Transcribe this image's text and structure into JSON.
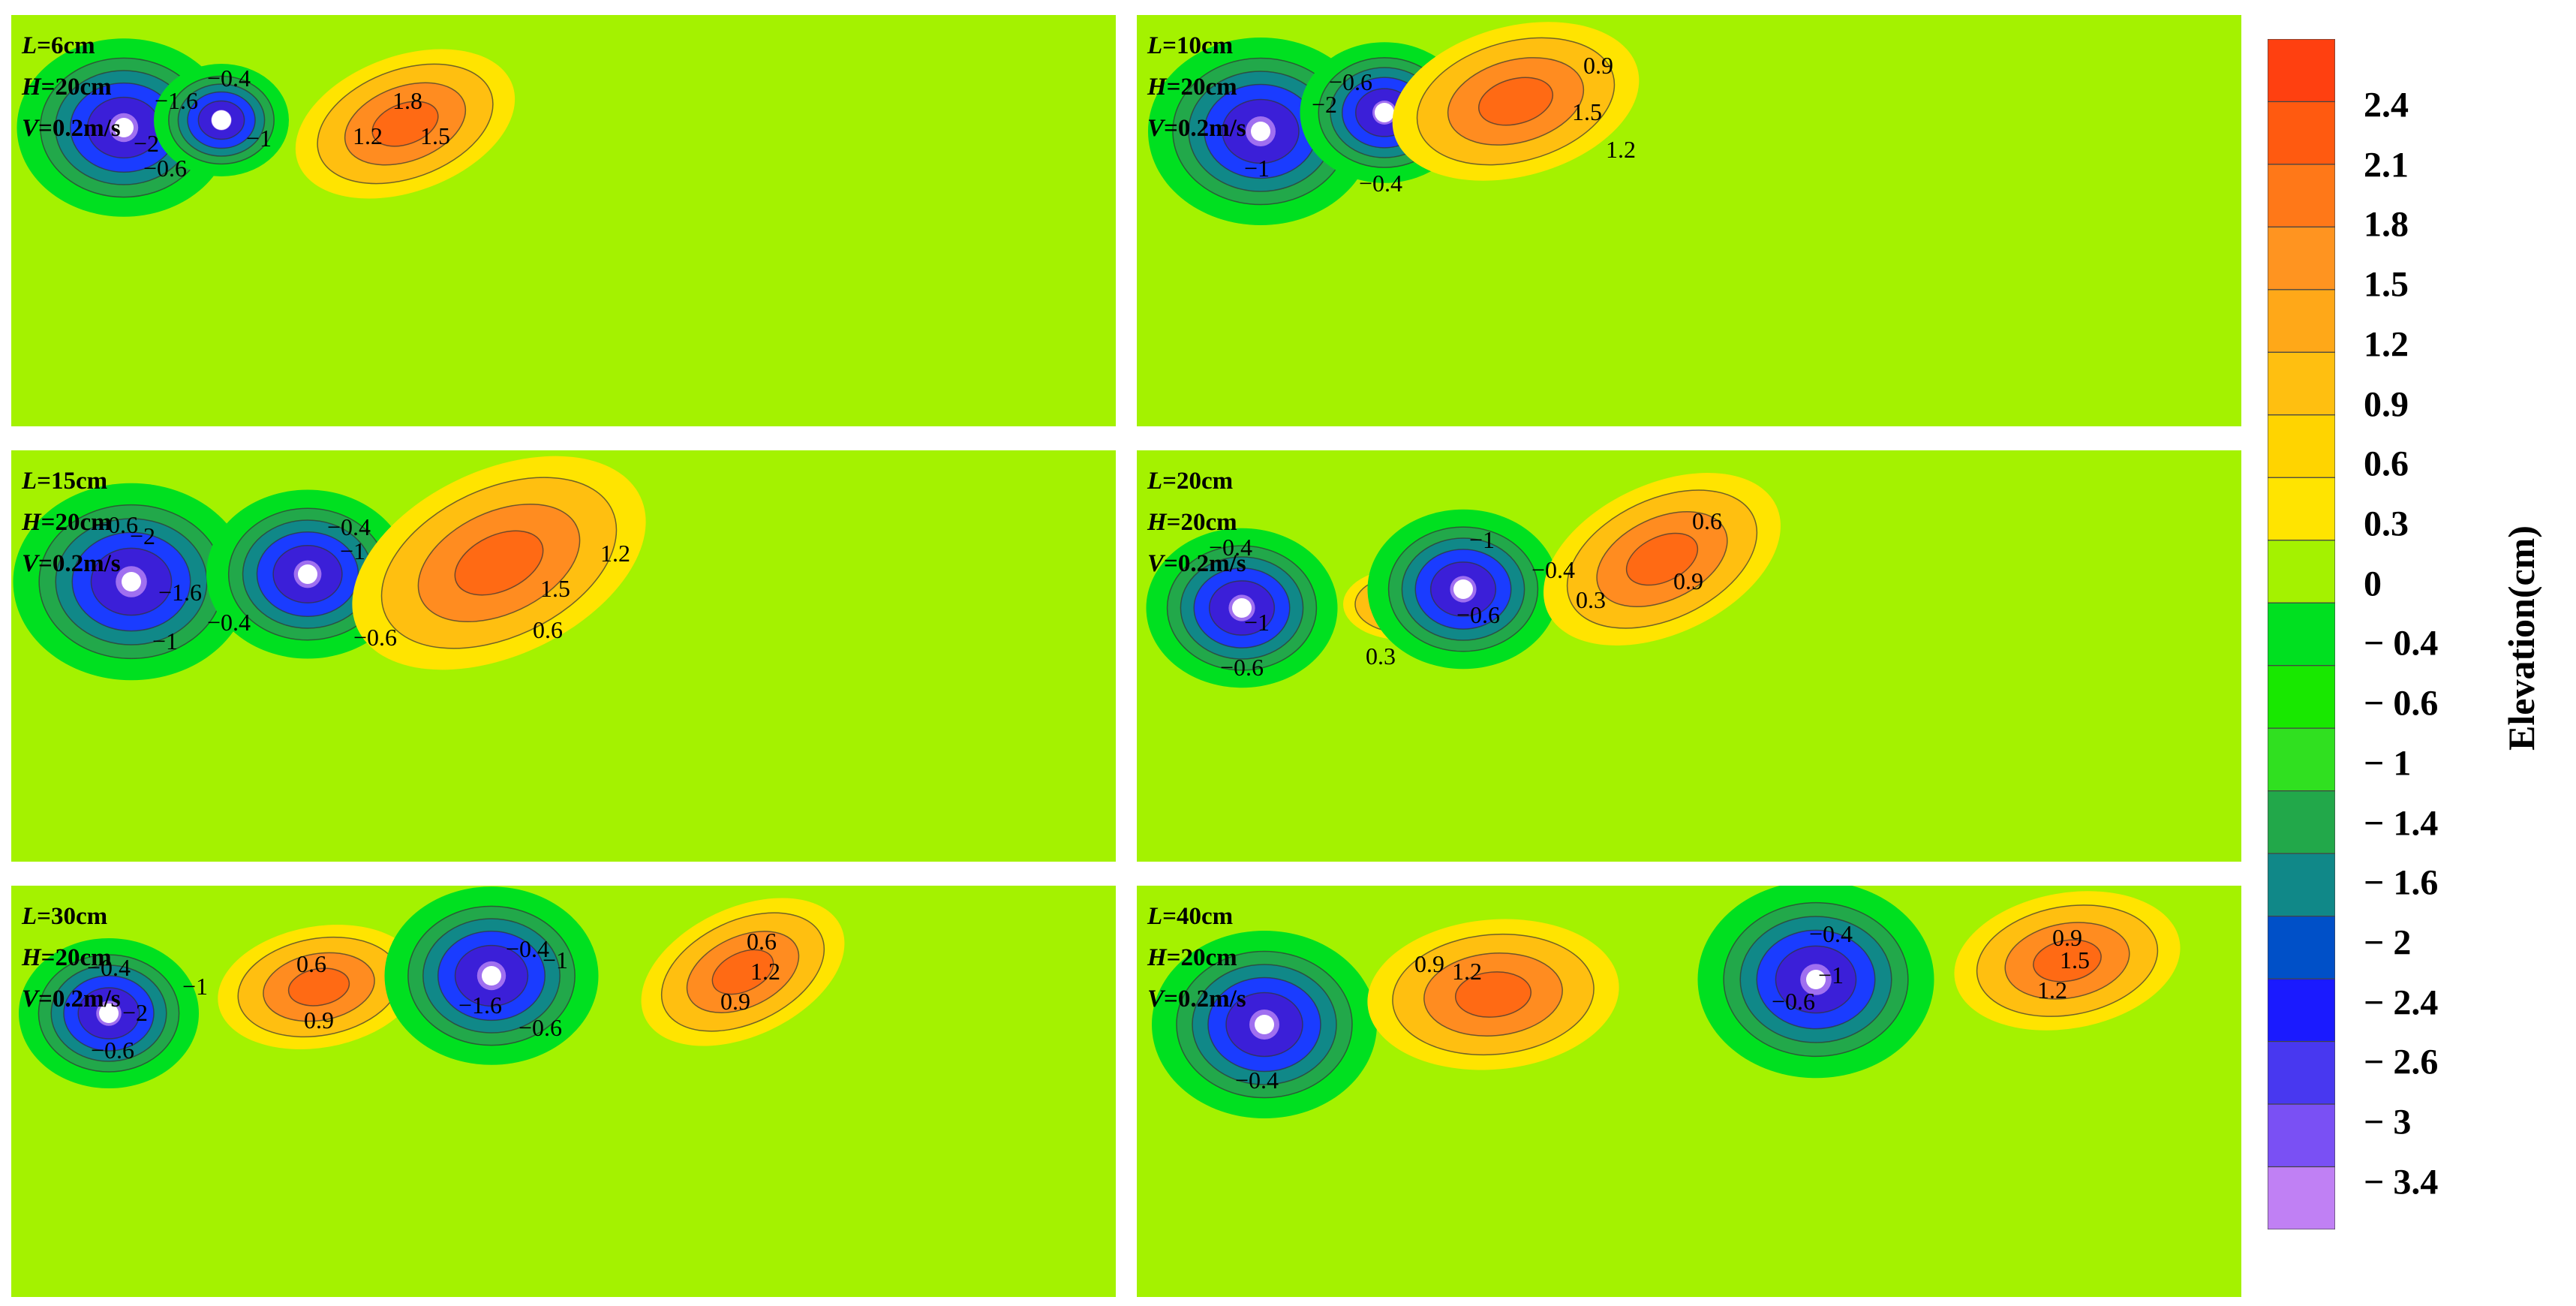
{
  "chart_data": {
    "type": "contour",
    "panels": [
      {
        "L": "6cm",
        "H": "20cm",
        "V": "0.2m/s",
        "contour_labels": [
          "-0.4",
          "-1.6",
          "-2",
          "-1",
          "-0.6",
          "1.8",
          "1.2",
          "1.5"
        ]
      },
      {
        "L": "10cm",
        "H": "20cm",
        "V": "0.2m/s",
        "contour_labels": [
          "-0.6",
          "-2",
          "-1",
          "-0.4",
          "0.9",
          "1.5",
          "1.2"
        ]
      },
      {
        "L": "15cm",
        "H": "20cm",
        "V": "0.2m/s",
        "contour_labels": [
          "-0.6",
          "-2",
          "-1.6",
          "-1",
          "-0.4",
          "-0.4",
          "-1",
          "-0.6",
          "1.2",
          "1.5",
          "0.6"
        ]
      },
      {
        "L": "20cm",
        "H": "20cm",
        "V": "0.2m/s",
        "contour_labels": [
          "-0.4",
          "-1",
          "-0.6",
          "0.3",
          "-1",
          "-0.4",
          "-0.6",
          "0.6",
          "0.9",
          "0.3"
        ]
      },
      {
        "L": "30cm",
        "H": "20cm",
        "V": "0.2m/s",
        "contour_labels": [
          "-0.4",
          "-1",
          "-2",
          "-0.6",
          "0.6",
          "0.9",
          "-0.4",
          "-1",
          "-1.6",
          "-0.6",
          "0.6",
          "1.2",
          "0.9"
        ]
      },
      {
        "L": "40cm",
        "H": "20cm",
        "V": "0.2m/s",
        "contour_labels": [
          "-0.4",
          "0.9",
          "1.2",
          "-0.4",
          "-0.6",
          "-1",
          "0.9",
          "1.5",
          "1.2"
        ]
      }
    ],
    "colorbar": {
      "title": "Elevation(cm)",
      "ticks": [
        "2.4",
        "2.1",
        "1.8",
        "1.5",
        "1.2",
        "0.9",
        "0.6",
        "0.3",
        "0",
        "− 0.4",
        "− 0.6",
        "− 1",
        "− 1.4",
        "− 1.6",
        "− 2",
        "− 2.4",
        "− 2.6",
        "− 3",
        "− 3.4"
      ],
      "colors": [
        "#ff4010",
        "#ff5a10",
        "#ff7818",
        "#ff9420",
        "#ffa818",
        "#ffbf10",
        "#ffd400",
        "#ffe400",
        "#a4f200",
        "#00e020",
        "#18e800",
        "#30e020",
        "#22a84a",
        "#108888",
        "#0050c8",
        "#1a1aff",
        "#4838f0",
        "#7a50f4",
        "#c080f4"
      ]
    },
    "xlabel": "",
    "ylabel": ""
  },
  "palette": {
    "background": "#a4f200",
    "pos_low": "#ffe400",
    "pos_mid": "#ffbf10",
    "pos_high": "#ff8c20",
    "pos_peak": "#ff6a14",
    "neg_low": "#00e020",
    "neg_mid": "#22a84a",
    "neg_mid2": "#108888",
    "neg_high": "#1a3cff",
    "neg_peak": "#3b1fd8",
    "neg_core": "#a070f0",
    "pier": "#ffffff"
  }
}
